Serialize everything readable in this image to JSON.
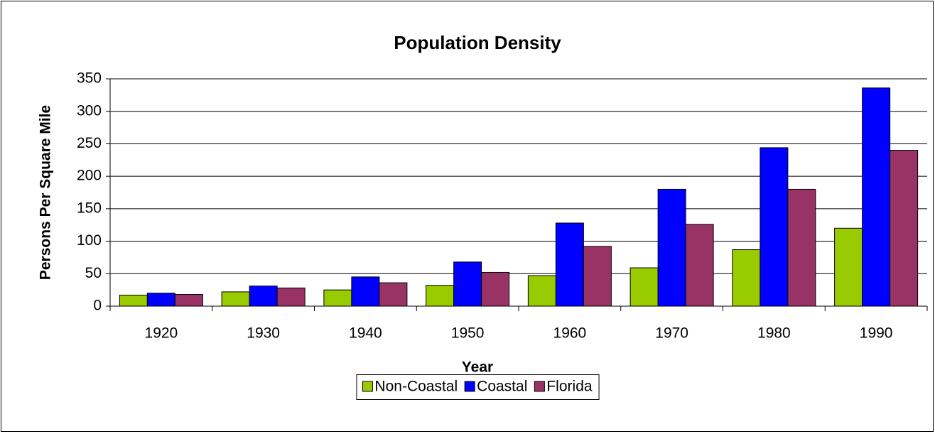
{
  "chart_data": {
    "type": "bar",
    "title": "Population Density",
    "x_label": "Year",
    "y_label": "Persons Per Square Mile",
    "categories": [
      "1920",
      "1930",
      "1940",
      "1950",
      "1960",
      "1970",
      "1980",
      "1990"
    ],
    "series": [
      {
        "name": "Non-Coastal",
        "color": "#99cc00",
        "values": [
          17,
          22,
          25,
          32,
          47,
          59,
          87,
          120
        ]
      },
      {
        "name": "Coastal",
        "color": "#0000ff",
        "values": [
          20,
          31,
          45,
          68,
          128,
          180,
          244,
          336
        ]
      },
      {
        "name": "Florida",
        "color": "#993366",
        "values": [
          18,
          28,
          36,
          52,
          92,
          126,
          180,
          240
        ]
      }
    ],
    "ylim": [
      0,
      350
    ],
    "yticks": [
      0,
      50,
      100,
      150,
      200,
      250,
      300,
      350
    ],
    "grid": true,
    "legend": "bottom"
  }
}
